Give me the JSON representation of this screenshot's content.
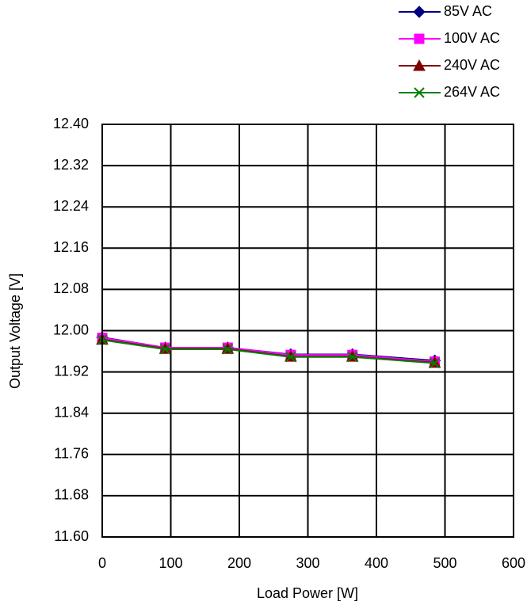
{
  "chart_data": {
    "type": "line",
    "x_label": "Load Power [W]",
    "y_label": "Output Voltage [V]",
    "x": [
      0,
      92,
      183,
      275,
      365,
      485
    ],
    "series": [
      {
        "name": "85V AC",
        "color": "#000080",
        "marker": "diamond",
        "values": [
          11.987,
          11.967,
          11.967,
          11.954,
          11.954,
          11.942
        ]
      },
      {
        "name": "100V AC",
        "color": "#ff00ff",
        "marker": "square",
        "values": [
          11.986,
          11.967,
          11.967,
          11.953,
          11.953,
          11.94
        ]
      },
      {
        "name": "240V AC",
        "color": "#800000",
        "marker": "triangle",
        "values": [
          11.983,
          11.965,
          11.965,
          11.95,
          11.95,
          11.938
        ]
      },
      {
        "name": "264V AC",
        "color": "#008000",
        "marker": "x",
        "values": [
          11.982,
          11.964,
          11.964,
          11.949,
          11.949,
          11.937
        ]
      }
    ],
    "xlim": [
      0,
      600
    ],
    "xticks": [
      0,
      100,
      200,
      300,
      400,
      500,
      600
    ],
    "ylim": [
      11.6,
      12.4
    ],
    "yticks": [
      {
        "value": 11.6,
        "label": "11.60"
      },
      {
        "value": 11.68,
        "label": "11.68"
      },
      {
        "value": 11.76,
        "label": "11.76"
      },
      {
        "value": 11.84,
        "label": "11.84"
      },
      {
        "value": 11.92,
        "label": "11.92"
      },
      {
        "value": 12.0,
        "label": "12.00"
      },
      {
        "value": 12.08,
        "label": "12.08"
      },
      {
        "value": 12.16,
        "label": "12.16"
      },
      {
        "value": 12.24,
        "label": "12.24"
      },
      {
        "value": 12.32,
        "label": "12.32"
      },
      {
        "value": 12.4,
        "label": "12.40"
      }
    ],
    "grid": true,
    "legend": "top-right"
  }
}
